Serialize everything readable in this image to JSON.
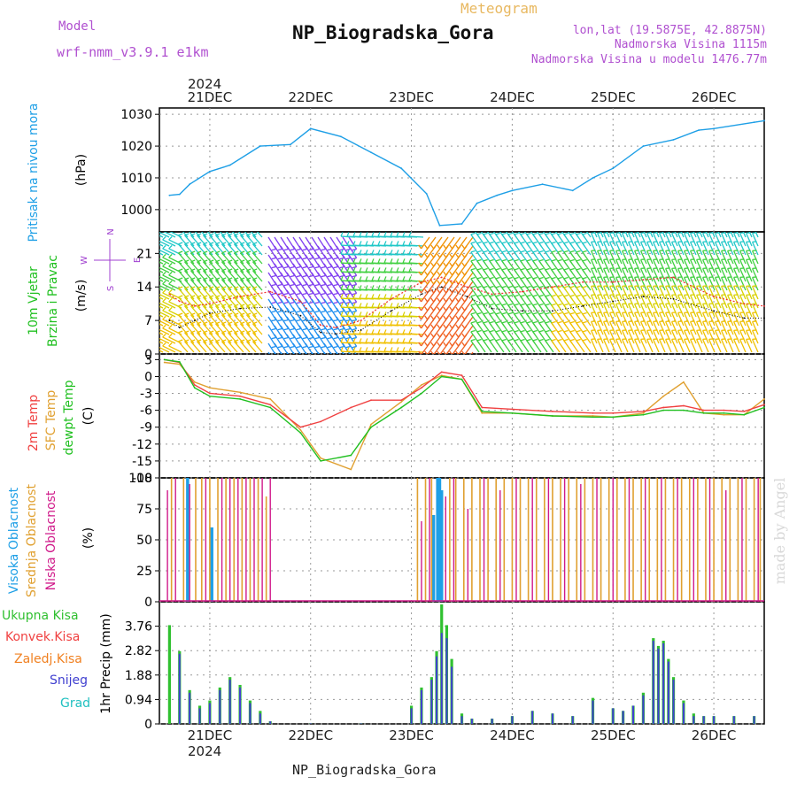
{
  "header": {
    "model_label": "Model",
    "model_value": "wrf-nmm_v3.9.1 e1km",
    "app_title": "Meteogram",
    "station_title": "NP_Biogradska_Gora",
    "coords": "lon,lat (19.5875E, 42.8875N)",
    "elevation": "Nadmorska Visina 1115m",
    "model_elevation": "Nadmorska Visina u modelu 1476.77m",
    "footer_station": "NP_Biogradska_Gora",
    "watermark": "made by Angel"
  },
  "colors": {
    "pressure": "#1e9fe6",
    "wind_speed": "#000000",
    "wind_gust": "#f03030",
    "temp2m": "#f04040",
    "sfc_temp": "#e0a030",
    "dewpoint": "#20c020",
    "high_cloud": "#1e9fe6",
    "mid_cloud": "#e0a030",
    "low_cloud": "#d01a8a",
    "total_precip": "#30c030",
    "conv_precip": "#f04040",
    "frozen_precip": "#f08020",
    "snow": "#4040d0",
    "hail": "#20c0c0",
    "wind_compass": "#a040d0",
    "title_orange": "#e8b860",
    "title_purple": "#b050d0"
  },
  "time_axis": {
    "top_year": "2024",
    "bottom_year": "2024",
    "labels": [
      "21DEC",
      "22DEC",
      "23DEC",
      "24DEC",
      "25DEC",
      "26DEC"
    ]
  },
  "wind_compass": {
    "n": "N",
    "s": "S",
    "w": "W",
    "e": "E"
  },
  "chart_data": [
    {
      "type": "line",
      "panel": "pressure",
      "ylabel_outer": "Pritisak na nivou mora",
      "ylabel_inner": "(hPa)",
      "ylim": [
        993,
        1032
      ],
      "yticks": [
        "1000",
        "1010",
        "1020",
        "1030"
      ],
      "x_days": [
        0.6,
        0.7,
        0.8,
        1.0,
        1.2,
        1.5,
        1.8,
        2.0,
        2.3,
        2.6,
        2.9,
        3.15,
        3.28,
        3.5,
        3.65,
        3.85,
        4.0,
        4.3,
        4.6,
        4.8,
        5.0,
        5.3,
        5.6,
        5.85,
        6.0,
        6.4,
        6.5
      ],
      "series": [
        {
          "values": [
            1004.5,
            1004.8,
            1008,
            1012,
            1014,
            1020,
            1020.5,
            1025.5,
            1023,
            1018,
            1013,
            1005,
            995,
            995.5,
            1002,
            1004.5,
            1006,
            1008,
            1006,
            1010,
            1013,
            1020,
            1022,
            1025,
            1025.5,
            1027.5,
            1028
          ]
        }
      ]
    },
    {
      "type": "line",
      "panel": "wind",
      "ylabel_outer_1": "10m Vjetar",
      "ylabel_outer_2": "Brzina i Pravac",
      "ylabel_inner": "(m/s)",
      "ylim": [
        0,
        25.5
      ],
      "yticks": [
        "0",
        "7",
        "14",
        "21"
      ],
      "x_days": [
        0.6,
        0.7,
        0.85,
        1.0,
        1.3,
        1.6,
        1.9,
        2.1,
        2.25,
        2.5,
        2.8,
        3.1,
        3.3,
        3.55,
        3.8,
        4.1,
        4.4,
        4.7,
        5.0,
        5.3,
        5.6,
        6.0,
        6.3,
        6.5
      ],
      "series": [
        {
          "name": "speed",
          "values": [
            7,
            5.5,
            7,
            8.5,
            9.5,
            9.8,
            8,
            4.5,
            4.2,
            5,
            9,
            12.5,
            14,
            12,
            9.5,
            9,
            9,
            10,
            11,
            12,
            11.5,
            9,
            7.5,
            7.5
          ]
        },
        {
          "name": "gust",
          "values": [
            12.5,
            11,
            10,
            10.5,
            12,
            13,
            11,
            6,
            5.5,
            7,
            11.5,
            15,
            16,
            14,
            12.5,
            13,
            14,
            15,
            15,
            15.5,
            16,
            12,
            10.5,
            10
          ]
        }
      ]
    },
    {
      "type": "line",
      "panel": "temperature",
      "ylabel_1": "2m Temp",
      "ylabel_2": "SFC Temp",
      "ylabel_3": "dewpt Temp",
      "ylabel_inner": "(C)",
      "ylim": [
        -18,
        4
      ],
      "yticks": [
        "3",
        "0",
        "-3",
        "-6",
        "-9",
        "-12",
        "-15",
        "-18"
      ],
      "x_days": [
        0.55,
        0.7,
        0.85,
        1.0,
        1.3,
        1.6,
        1.9,
        2.1,
        2.4,
        2.6,
        2.9,
        3.1,
        3.3,
        3.5,
        3.7,
        4.0,
        4.4,
        4.8,
        5.0,
        5.3,
        5.5,
        5.7,
        5.9,
        6.1,
        6.3,
        6.5
      ],
      "series": [
        {
          "name": "2m",
          "values": [
            3,
            2.5,
            -1.5,
            -3,
            -3.5,
            -5,
            -9,
            -8,
            -5.5,
            -4.2,
            -4.2,
            -2,
            0.8,
            0.2,
            -5.5,
            -5.8,
            -6.2,
            -6.5,
            -6.5,
            -6.2,
            -5.5,
            -5.2,
            -6,
            -6,
            -6.2,
            -5
          ]
        },
        {
          "name": "sfc",
          "values": [
            2.5,
            2.2,
            -1,
            -2,
            -2.8,
            -4,
            -9.5,
            -14.5,
            -16.5,
            -8.5,
            -4.5,
            -1.5,
            0.2,
            -0.5,
            -6.5,
            -6.5,
            -7,
            -7,
            -7.2,
            -6.5,
            -3.5,
            -1,
            -6.5,
            -6.8,
            -6.8,
            -4
          ]
        },
        {
          "name": "dewpt",
          "values": [
            3,
            2.6,
            -2,
            -3.5,
            -4,
            -5.5,
            -10,
            -15,
            -14,
            -9,
            -5.5,
            -3,
            0,
            -0.5,
            -6.2,
            -6.5,
            -7,
            -7.2,
            -7.2,
            -6.8,
            -6,
            -6,
            -6.5,
            -6.5,
            -6.8,
            -5.5
          ]
        }
      ]
    },
    {
      "type": "bar",
      "panel": "cloud",
      "ylabel_1": "Visoka Oblacnost",
      "ylabel_2": "Srednja Oblacnost",
      "ylabel_3": "Niska Oblacnost",
      "ylabel_inner": "(%)",
      "ylim": [
        0,
        100
      ],
      "yticks": [
        "0",
        "25",
        "50",
        "75",
        "100"
      ],
      "series": [
        {
          "name": "high",
          "x_days": [
            0.78,
            1.02,
            3.22,
            3.26,
            3.28,
            3.3
          ],
          "values": [
            100,
            60,
            70,
            100,
            100,
            90
          ]
        },
        {
          "name": "mid",
          "x_days": [
            0.62,
            0.74,
            0.86,
            0.92,
            1.0,
            1.08,
            1.16,
            1.24,
            1.32,
            1.4,
            1.48,
            1.56,
            3.06,
            3.14,
            3.2,
            3.38,
            3.44,
            3.52,
            3.6,
            3.68,
            3.76,
            3.84,
            3.92,
            4.0,
            4.08,
            4.16,
            4.24,
            4.32,
            4.4,
            4.48,
            4.56,
            4.64,
            4.72,
            4.8,
            4.88,
            4.96,
            5.04,
            5.12,
            5.2,
            5.28,
            5.36,
            5.44,
            5.52,
            5.6,
            5.68,
            5.76,
            5.84,
            5.92,
            6.0,
            6.08,
            6.16,
            6.24,
            6.32,
            6.4,
            6.46
          ],
          "values": [
            100,
            100,
            100,
            100,
            100,
            100,
            100,
            100,
            100,
            100,
            100,
            85,
            100,
            100,
            100,
            100,
            100,
            100,
            100,
            100,
            100,
            100,
            100,
            100,
            100,
            100,
            100,
            100,
            100,
            100,
            100,
            100,
            100,
            100,
            100,
            100,
            100,
            100,
            100,
            100,
            100,
            100,
            100,
            100,
            100,
            100,
            100,
            100,
            100,
            100,
            100,
            100,
            100,
            100,
            100
          ]
        },
        {
          "name": "low",
          "x_days": [
            0.58,
            0.66,
            0.8,
            0.96,
            1.12,
            1.2,
            1.28,
            1.36,
            1.44,
            1.52,
            1.6,
            3.1,
            3.18,
            3.34,
            3.42,
            3.56,
            3.72,
            3.88,
            4.04,
            4.2,
            4.36,
            4.52,
            4.68,
            4.84,
            5.0,
            5.16,
            5.32,
            5.48,
            5.64,
            5.8,
            5.96,
            6.12,
            6.28,
            6.44
          ],
          "values": [
            90,
            100,
            95,
            100,
            100,
            100,
            100,
            100,
            100,
            100,
            100,
            65,
            100,
            85,
            100,
            75,
            100,
            90,
            100,
            100,
            100,
            100,
            95,
            100,
            100,
            100,
            100,
            100,
            100,
            100,
            100,
            90,
            100,
            100
          ]
        }
      ]
    },
    {
      "type": "bar",
      "panel": "precipitation",
      "legend": [
        "Ukupna Kisa",
        "Konvek.Kisa",
        "Zaledj.Kisa",
        "Snijeg",
        "Grad"
      ],
      "ylabel_inner": "1hr Precip (mm)",
      "ylim": [
        0,
        4.7
      ],
      "yticks": [
        "0",
        "0.94",
        "1.88",
        "2.82",
        "3.76"
      ],
      "x_days": [
        0.6,
        0.7,
        0.8,
        0.9,
        1.0,
        1.1,
        1.2,
        1.3,
        1.4,
        1.5,
        1.6,
        2.0,
        2.5,
        3.0,
        3.1,
        3.2,
        3.25,
        3.3,
        3.35,
        3.4,
        3.5,
        3.6,
        3.8,
        4.0,
        4.2,
        4.4,
        4.6,
        4.8,
        5.0,
        5.1,
        5.2,
        5.3,
        5.4,
        5.45,
        5.5,
        5.55,
        5.6,
        5.7,
        5.8,
        5.9,
        6.0,
        6.2,
        6.4
      ],
      "series": [
        {
          "name": "Ukupna Kisa",
          "values": [
            3.8,
            2.8,
            1.3,
            0.7,
            0.9,
            1.4,
            1.8,
            1.5,
            0.9,
            0.5,
            0.1,
            0.02,
            0.02,
            0.7,
            1.4,
            1.8,
            2.8,
            4.6,
            3.8,
            2.5,
            0.4,
            0.2,
            0.2,
            0.3,
            0.5,
            0.4,
            0.3,
            1.0,
            0.6,
            0.5,
            0.7,
            1.2,
            3.3,
            3.0,
            3.2,
            2.5,
            1.8,
            0.9,
            0.4,
            0.3,
            0.3,
            0.3,
            0.3
          ]
        },
        {
          "name": "Snijeg",
          "values": [
            0,
            2.7,
            1.2,
            0.6,
            0.8,
            1.3,
            1.7,
            1.4,
            0.8,
            0.4,
            0.1,
            0.02,
            0.02,
            0.6,
            1.3,
            1.7,
            2.6,
            3.5,
            3.3,
            2.2,
            0.3,
            0.2,
            0.2,
            0.3,
            0.5,
            0.4,
            0.3,
            0.9,
            0.6,
            0.5,
            0.7,
            1.1,
            3.2,
            2.9,
            3.1,
            2.4,
            1.7,
            0.8,
            0.3,
            0.3,
            0.3,
            0.3,
            0.3
          ]
        }
      ]
    }
  ]
}
